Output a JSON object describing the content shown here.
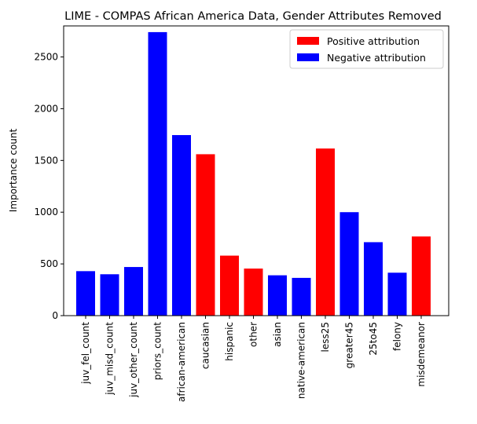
{
  "chart_data": {
    "type": "bar",
    "title": "LIME - COMPAS African America Data, Gender Attributes Removed",
    "xlabel": "",
    "ylabel": "Importance count",
    "ylim": [
      0,
      2800
    ],
    "yticks": [
      0,
      500,
      1000,
      1500,
      2000,
      2500
    ],
    "grid": false,
    "legend_position": "top-right",
    "categories": [
      "juv_fel_count",
      "juv_misd_count",
      "juv_other_count",
      "priors_count",
      "african-american",
      "caucasian",
      "hispanic",
      "other",
      "asian",
      "native-american",
      "less25",
      "greater45",
      "25to45",
      "felony",
      "misdemeanor"
    ],
    "values": [
      430,
      400,
      470,
      2740,
      1745,
      1560,
      580,
      455,
      390,
      365,
      1615,
      1000,
      710,
      415,
      765
    ],
    "attribution": [
      "negative",
      "negative",
      "negative",
      "negative",
      "negative",
      "positive",
      "positive",
      "positive",
      "negative",
      "negative",
      "positive",
      "negative",
      "negative",
      "negative",
      "positive"
    ],
    "legend": [
      {
        "key": "positive",
        "label": "Positive attribution",
        "color": "#ff0000"
      },
      {
        "key": "negative",
        "label": "Negative attribution",
        "color": "#0000ff"
      }
    ]
  }
}
